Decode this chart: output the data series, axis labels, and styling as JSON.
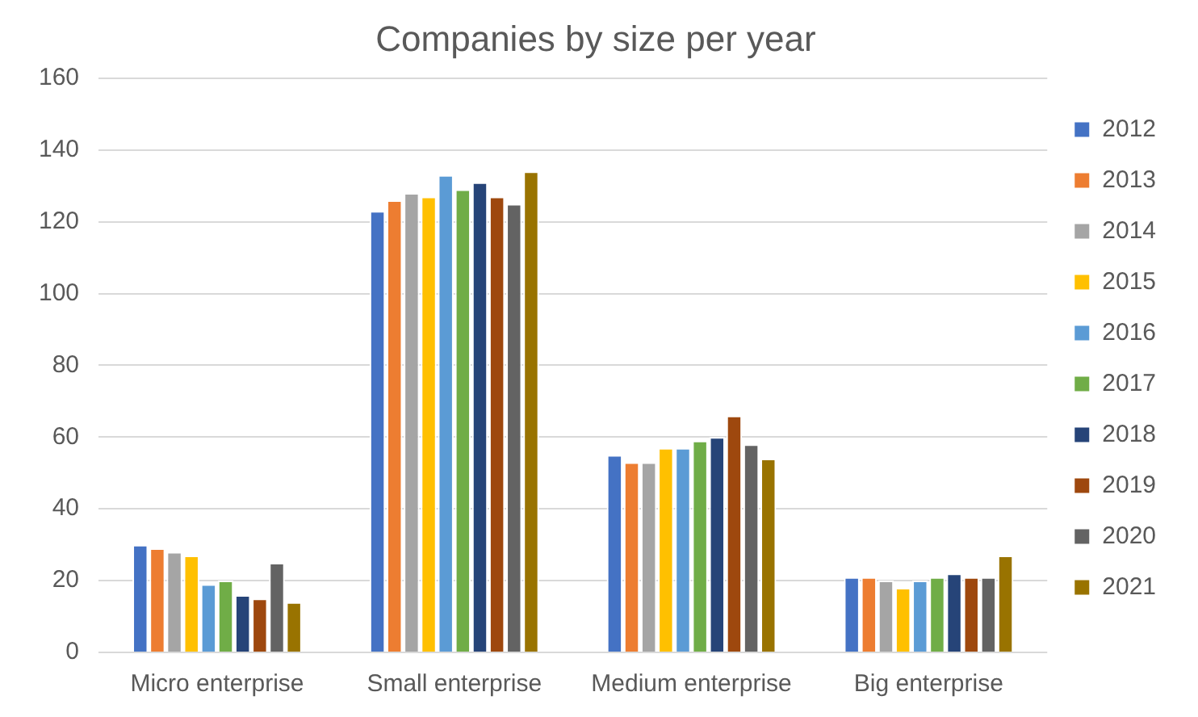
{
  "chart_data": {
    "type": "bar",
    "title": "Companies by size per year",
    "categories": [
      "Micro enterprise",
      "Small enterprise",
      "Medium enterprise",
      "Big enterprise"
    ],
    "series": [
      {
        "name": "2012",
        "color": "#4472c4",
        "values": [
          30,
          123,
          55,
          21
        ]
      },
      {
        "name": "2013",
        "color": "#ed7d31",
        "values": [
          29,
          126,
          53,
          21
        ]
      },
      {
        "name": "2014",
        "color": "#a5a5a5",
        "values": [
          28,
          128,
          53,
          20
        ]
      },
      {
        "name": "2015",
        "color": "#ffc000",
        "values": [
          27,
          127,
          57,
          18
        ]
      },
      {
        "name": "2016",
        "color": "#5b9bd5",
        "values": [
          19,
          133,
          57,
          20
        ]
      },
      {
        "name": "2017",
        "color": "#70ad47",
        "values": [
          20,
          129,
          59,
          21
        ]
      },
      {
        "name": "2018",
        "color": "#264478",
        "values": [
          16,
          131,
          60,
          22
        ]
      },
      {
        "name": "2019",
        "color": "#9e480e",
        "values": [
          15,
          127,
          66,
          21
        ]
      },
      {
        "name": "2020",
        "color": "#636363",
        "values": [
          25,
          125,
          58,
          21
        ]
      },
      {
        "name": "2021",
        "color": "#997300",
        "values": [
          14,
          134,
          54,
          27
        ]
      }
    ],
    "ylim": [
      0,
      160
    ],
    "yticks": [
      0,
      20,
      40,
      60,
      80,
      100,
      120,
      140,
      160
    ],
    "grid": "y",
    "legend": "right"
  }
}
